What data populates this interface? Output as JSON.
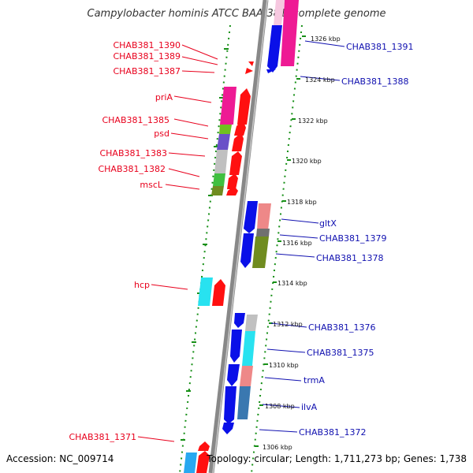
{
  "title": "Campylobacter hominis ATCC BAA-381, complete genome",
  "footer": {
    "accession": "Accession: NC_009714",
    "topology": "Topology: circular; Length: 1,711,273 bp; Genes: 1,738"
  },
  "colors": {
    "left_label": "#e8001c",
    "right_label": "#1010b0",
    "reverse_gene": "#0a10e8",
    "forward_gene": "#ff1010",
    "tick": "#168f16",
    "backbone": "#888888"
  },
  "left_labels": [
    {
      "id": "chab381-1390",
      "text": "CHAB381_1390"
    },
    {
      "id": "chab381-1389",
      "text": "CHAB381_1389"
    },
    {
      "id": "chab381-1387",
      "text": "CHAB381_1387"
    },
    {
      "id": "pria",
      "text": "priA"
    },
    {
      "id": "chab381-1385",
      "text": "CHAB381_1385"
    },
    {
      "id": "psd",
      "text": "psd"
    },
    {
      "id": "chab381-1383",
      "text": "CHAB381_1383"
    },
    {
      "id": "chab381-1382",
      "text": "CHAB381_1382"
    },
    {
      "id": "mscl",
      "text": "mscL"
    },
    {
      "id": "hcp",
      "text": "hcp"
    },
    {
      "id": "chab381-1371",
      "text": "CHAB381_1371"
    }
  ],
  "right_labels": [
    {
      "id": "chab381-1391",
      "text": "CHAB381_1391"
    },
    {
      "id": "chab381-1388",
      "text": "CHAB381_1388"
    },
    {
      "id": "gltx",
      "text": "gltX"
    },
    {
      "id": "chab381-1379",
      "text": "CHAB381_1379"
    },
    {
      "id": "chab381-1378",
      "text": "CHAB381_1378"
    },
    {
      "id": "chab381-1376",
      "text": "CHAB381_1376"
    },
    {
      "id": "chab381-1375",
      "text": "CHAB381_1375"
    },
    {
      "id": "trma",
      "text": "trmA"
    },
    {
      "id": "ilva",
      "text": "ilvA"
    },
    {
      "id": "chab381-1372",
      "text": "CHAB381_1372"
    }
  ],
  "kbp_labels": [
    "1326 kbp",
    "1324 kbp",
    "1322 kbp",
    "1320 kbp",
    "1318 kbp",
    "1316 kbp",
    "1314 kbp",
    "1312 kbp",
    "1310 kbp",
    "1308 kbp",
    "1306 kbp"
  ]
}
